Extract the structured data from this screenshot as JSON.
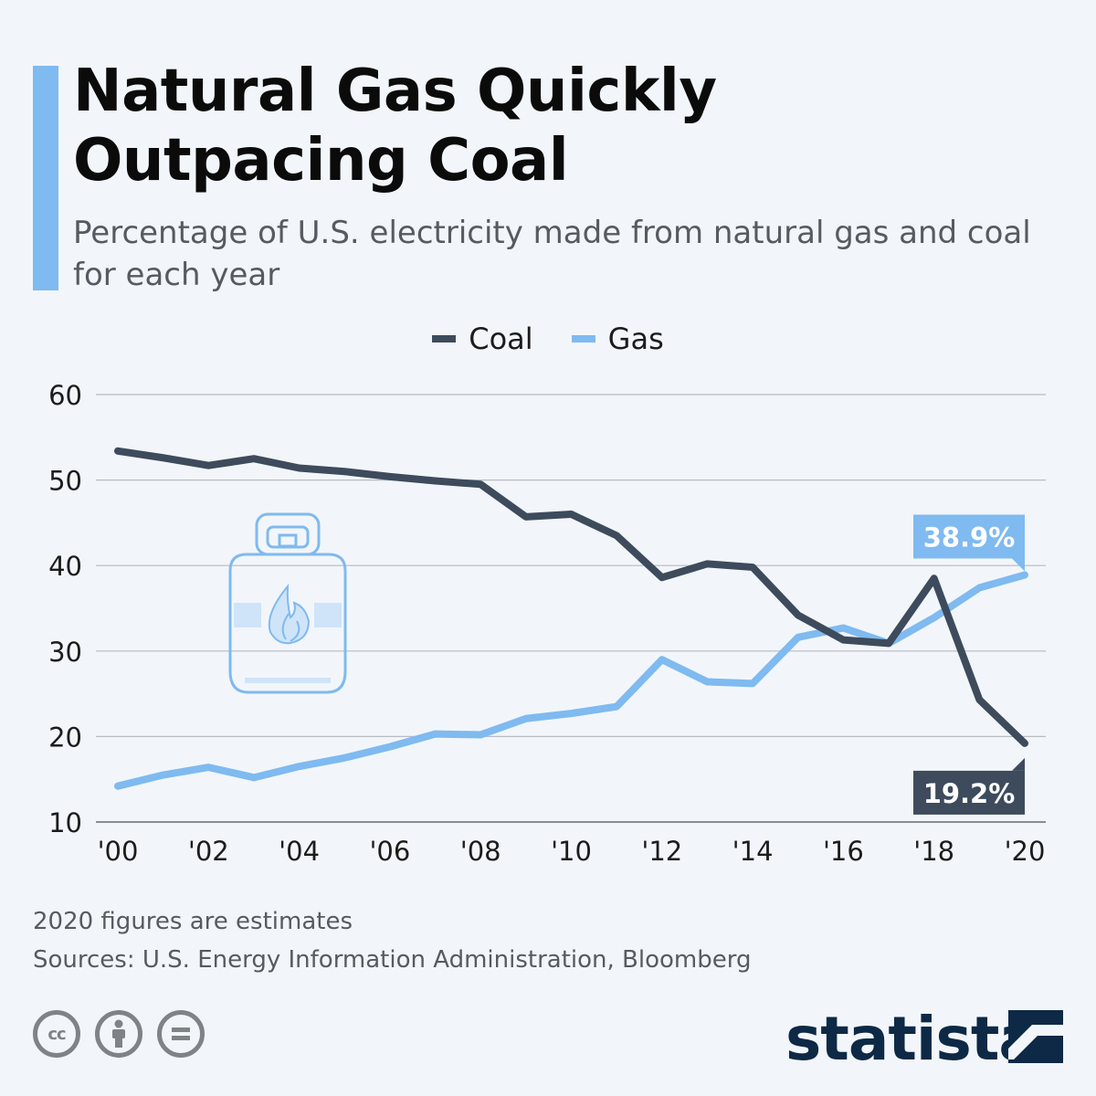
{
  "header": {
    "title": "Natural Gas Quickly Outpacing Coal",
    "subtitle": "Percentage of U.S. electricity made from natural gas and coal for each year",
    "accent_color": "#7fbaf0"
  },
  "legend": [
    {
      "label": "Coal",
      "color": "#3d4b5c"
    },
    {
      "label": "Gas",
      "color": "#7fbaf0"
    }
  ],
  "chart_data": {
    "type": "line",
    "title": "Natural Gas Quickly Outpacing Coal",
    "subtitle": "Percentage of U.S. electricity made from natural gas and coal for each year",
    "x": [
      2000,
      2001,
      2002,
      2003,
      2004,
      2005,
      2006,
      2007,
      2008,
      2009,
      2010,
      2011,
      2012,
      2013,
      2014,
      2015,
      2016,
      2017,
      2018,
      2019,
      2020
    ],
    "x_tick_labels": [
      "'00",
      "'02",
      "'04",
      "'06",
      "'08",
      "'10",
      "'12",
      "'14",
      "'16",
      "'18",
      "'20"
    ],
    "x_ticks": [
      2000,
      2002,
      2004,
      2006,
      2008,
      2010,
      2012,
      2014,
      2016,
      2018,
      2020
    ],
    "y_ticks": [
      10,
      20,
      30,
      40,
      50,
      60
    ],
    "ylim": [
      10,
      60
    ],
    "xlim": [
      2000,
      2020
    ],
    "grid": true,
    "legend_position": "top-center",
    "series": [
      {
        "name": "Coal",
        "color": "#3d4b5c",
        "values": [
          53.4,
          52.6,
          51.7,
          52.5,
          51.4,
          51.0,
          50.4,
          49.9,
          49.5,
          45.7,
          46.0,
          43.5,
          38.6,
          40.2,
          39.8,
          34.2,
          31.3,
          30.9,
          38.5,
          24.3,
          19.2
        ]
      },
      {
        "name": "Gas",
        "color": "#7fbaf0",
        "values": [
          14.2,
          15.5,
          16.4,
          15.2,
          16.5,
          17.5,
          18.8,
          20.3,
          20.2,
          22.1,
          22.7,
          23.5,
          29.0,
          26.4,
          26.2,
          31.6,
          32.7,
          30.9,
          33.9,
          37.4,
          38.9
        ]
      }
    ],
    "annotations": [
      {
        "series": "Gas",
        "x": 2020,
        "label": "38.9%",
        "color": "#7fbaf0"
      },
      {
        "series": "Coal",
        "x": 2020,
        "label": "19.2%",
        "color": "#3d4b5c"
      }
    ]
  },
  "footer": {
    "note": "2020 figures are estimates",
    "sources": "Sources: U.S. Energy Information Administration, Bloomberg",
    "brand": "statista",
    "license_icons": [
      "cc-icon",
      "attribution-icon",
      "no-derivatives-icon"
    ],
    "cc_label": "cc",
    "brand_color": "#0d2945",
    "icon_color": "#7f8286"
  }
}
